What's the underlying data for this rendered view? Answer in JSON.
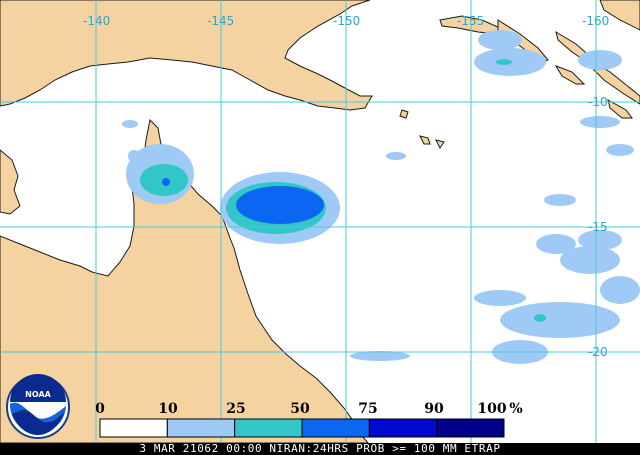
{
  "map": {
    "longitude_labels": [
      "-140",
      "-145",
      "-150",
      "-155",
      "-160"
    ],
    "latitude_labels": [
      "-10",
      "-15",
      "-20"
    ],
    "colors": {
      "land": "#f5d3a0",
      "ocean": "#ffffff",
      "graticule": "#49c9dc",
      "coast": "#1a1a1a"
    }
  },
  "legend": {
    "unit": "%",
    "labels": [
      "0",
      "10",
      "25",
      "50",
      "75",
      "90",
      "100"
    ],
    "bins": [
      {
        "range": "0-10",
        "color": "#ffffff"
      },
      {
        "range": "10-25",
        "color": "#9ecaf5"
      },
      {
        "range": "25-50",
        "color": "#33c6c9"
      },
      {
        "range": "50-75",
        "color": "#0b66f2"
      },
      {
        "range": "75-90",
        "color": "#0008d2"
      },
      {
        "range": "90-100",
        "color": "#00008a"
      }
    ]
  },
  "footer": {
    "text": "3 MAR 21062 00:00 NIRAN:24HRS PROB >= 100 MM ETRAP"
  },
  "logo": {
    "text": "NOAA",
    "icon": "noaa-logo-icon"
  }
}
